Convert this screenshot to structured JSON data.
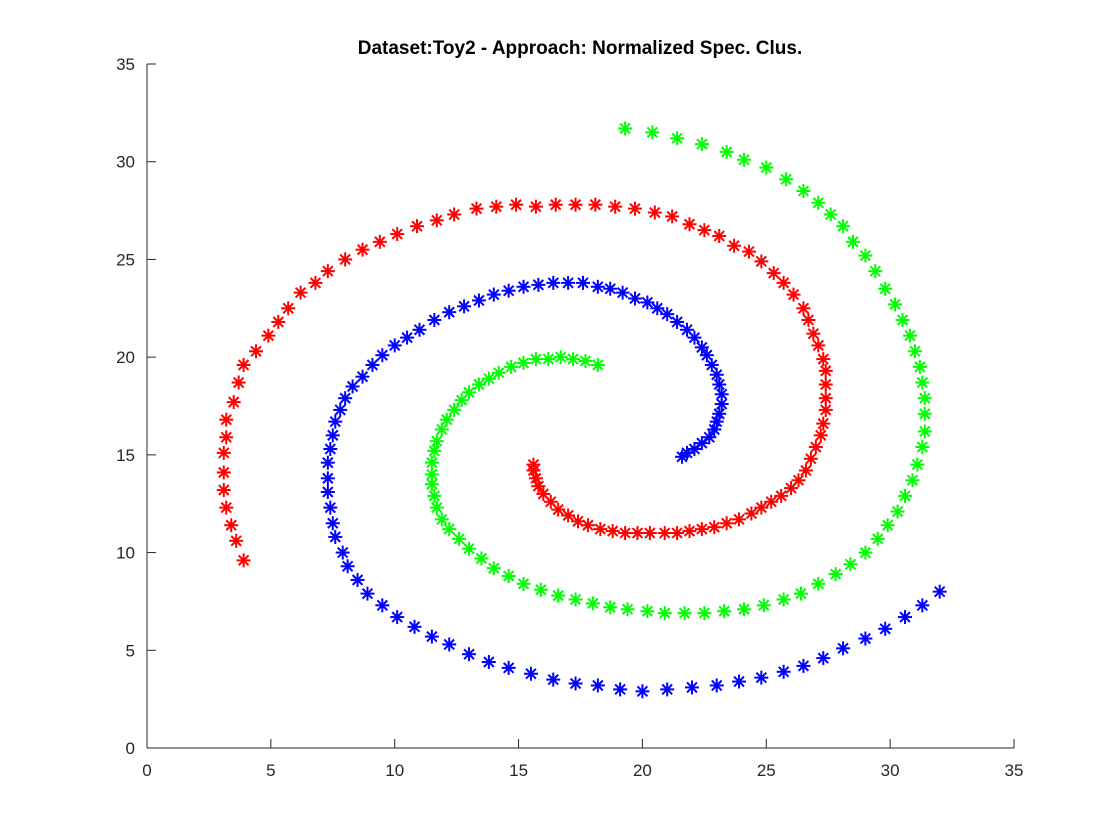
{
  "chart_data": {
    "type": "scatter",
    "title": "Dataset:Toy2 - Approach: Normalized Spec. Clus.",
    "xlabel": "",
    "ylabel": "",
    "xlim": [
      0,
      35
    ],
    "ylim": [
      0,
      35
    ],
    "xticks": [
      0,
      5,
      10,
      15,
      20,
      25,
      30,
      35
    ],
    "yticks": [
      0,
      5,
      10,
      15,
      20,
      25,
      30,
      35
    ],
    "grid": false,
    "marker": "asterisk",
    "series": [
      {
        "color": "#ff0000",
        "points": [
          [
            3.9,
            9.6
          ],
          [
            3.6,
            10.6
          ],
          [
            3.4,
            11.4
          ],
          [
            3.2,
            12.3
          ],
          [
            3.1,
            13.2
          ],
          [
            3.1,
            14.1
          ],
          [
            3.1,
            15.1
          ],
          [
            3.2,
            15.9
          ],
          [
            3.2,
            16.8
          ],
          [
            3.5,
            17.7
          ],
          [
            3.7,
            18.7
          ],
          [
            3.9,
            19.6
          ],
          [
            4.4,
            20.3
          ],
          [
            4.9,
            21.1
          ],
          [
            5.3,
            21.8
          ],
          [
            5.7,
            22.5
          ],
          [
            6.2,
            23.3
          ],
          [
            6.8,
            23.8
          ],
          [
            7.3,
            24.4
          ],
          [
            8.0,
            25.0
          ],
          [
            8.7,
            25.5
          ],
          [
            9.4,
            25.9
          ],
          [
            10.1,
            26.3
          ],
          [
            10.9,
            26.7
          ],
          [
            11.7,
            27.0
          ],
          [
            12.4,
            27.3
          ],
          [
            13.3,
            27.6
          ],
          [
            14.1,
            27.7
          ],
          [
            14.9,
            27.8
          ],
          [
            15.7,
            27.7
          ],
          [
            16.5,
            27.8
          ],
          [
            17.3,
            27.8
          ],
          [
            18.1,
            27.8
          ],
          [
            18.9,
            27.7
          ],
          [
            19.7,
            27.6
          ],
          [
            20.5,
            27.4
          ],
          [
            21.2,
            27.2
          ],
          [
            21.9,
            26.8
          ],
          [
            22.5,
            26.5
          ],
          [
            23.1,
            26.2
          ],
          [
            23.7,
            25.7
          ],
          [
            24.3,
            25.4
          ],
          [
            24.8,
            24.9
          ],
          [
            25.3,
            24.3
          ],
          [
            25.7,
            23.8
          ],
          [
            26.1,
            23.2
          ],
          [
            26.5,
            22.5
          ],
          [
            26.7,
            21.9
          ],
          [
            26.9,
            21.2
          ],
          [
            27.1,
            20.6
          ],
          [
            27.3,
            19.9
          ],
          [
            27.4,
            19.3
          ],
          [
            27.4,
            18.6
          ],
          [
            27.4,
            17.9
          ],
          [
            27.4,
            17.3
          ],
          [
            27.3,
            16.6
          ],
          [
            27.2,
            16.0
          ],
          [
            27.0,
            15.4
          ],
          [
            26.8,
            14.8
          ],
          [
            26.6,
            14.2
          ],
          [
            26.3,
            13.7
          ],
          [
            26.0,
            13.3
          ],
          [
            25.6,
            12.9
          ],
          [
            25.2,
            12.6
          ],
          [
            24.8,
            12.3
          ],
          [
            24.4,
            12.0
          ],
          [
            23.9,
            11.7
          ],
          [
            23.4,
            11.5
          ],
          [
            22.9,
            11.3
          ],
          [
            22.4,
            11.2
          ],
          [
            21.9,
            11.1
          ],
          [
            21.4,
            11.0
          ],
          [
            20.9,
            11.0
          ],
          [
            20.3,
            11.0
          ],
          [
            19.8,
            11.0
          ],
          [
            19.3,
            11.0
          ],
          [
            18.8,
            11.1
          ],
          [
            18.3,
            11.2
          ],
          [
            17.8,
            11.4
          ],
          [
            17.4,
            11.6
          ],
          [
            17.0,
            11.9
          ],
          [
            16.6,
            12.2
          ],
          [
            16.3,
            12.6
          ],
          [
            16.0,
            13.0
          ],
          [
            15.8,
            13.4
          ],
          [
            15.7,
            13.8
          ],
          [
            15.6,
            14.2
          ],
          [
            15.6,
            14.5
          ]
        ]
      },
      {
        "color": "#0000ff",
        "points": [
          [
            32.0,
            8.0
          ],
          [
            31.3,
            7.3
          ],
          [
            30.6,
            6.7
          ],
          [
            29.8,
            6.1
          ],
          [
            29.0,
            5.6
          ],
          [
            28.1,
            5.1
          ],
          [
            27.3,
            4.6
          ],
          [
            26.5,
            4.2
          ],
          [
            25.7,
            3.9
          ],
          [
            24.8,
            3.6
          ],
          [
            23.9,
            3.4
          ],
          [
            23.0,
            3.2
          ],
          [
            22.0,
            3.1
          ],
          [
            21.0,
            3.0
          ],
          [
            20.0,
            2.9
          ],
          [
            19.1,
            3.0
          ],
          [
            18.2,
            3.2
          ],
          [
            17.3,
            3.3
          ],
          [
            16.4,
            3.5
          ],
          [
            15.5,
            3.8
          ],
          [
            14.6,
            4.1
          ],
          [
            13.8,
            4.4
          ],
          [
            13.0,
            4.8
          ],
          [
            12.2,
            5.3
          ],
          [
            11.5,
            5.7
          ],
          [
            10.8,
            6.2
          ],
          [
            10.1,
            6.7
          ],
          [
            9.5,
            7.3
          ],
          [
            8.9,
            7.9
          ],
          [
            8.5,
            8.6
          ],
          [
            8.1,
            9.3
          ],
          [
            7.9,
            10.0
          ],
          [
            7.6,
            10.8
          ],
          [
            7.5,
            11.5
          ],
          [
            7.4,
            12.3
          ],
          [
            7.3,
            13.1
          ],
          [
            7.3,
            13.8
          ],
          [
            7.3,
            14.6
          ],
          [
            7.4,
            15.3
          ],
          [
            7.5,
            16.0
          ],
          [
            7.6,
            16.7
          ],
          [
            7.8,
            17.3
          ],
          [
            8.0,
            17.9
          ],
          [
            8.3,
            18.5
          ],
          [
            8.7,
            19.0
          ],
          [
            9.1,
            19.6
          ],
          [
            9.5,
            20.1
          ],
          [
            10.0,
            20.6
          ],
          [
            10.5,
            21.0
          ],
          [
            11.0,
            21.4
          ],
          [
            11.6,
            21.9
          ],
          [
            12.2,
            22.3
          ],
          [
            12.8,
            22.6
          ],
          [
            13.4,
            22.9
          ],
          [
            14.0,
            23.2
          ],
          [
            14.6,
            23.4
          ],
          [
            15.2,
            23.6
          ],
          [
            15.8,
            23.7
          ],
          [
            16.4,
            23.8
          ],
          [
            17.0,
            23.8
          ],
          [
            17.6,
            23.8
          ],
          [
            18.2,
            23.6
          ],
          [
            18.7,
            23.5
          ],
          [
            19.2,
            23.3
          ],
          [
            19.7,
            23.0
          ],
          [
            20.2,
            22.8
          ],
          [
            20.6,
            22.5
          ],
          [
            21.0,
            22.2
          ],
          [
            21.4,
            21.8
          ],
          [
            21.8,
            21.4
          ],
          [
            22.1,
            21.0
          ],
          [
            22.4,
            20.5
          ],
          [
            22.6,
            20.1
          ],
          [
            22.8,
            19.6
          ],
          [
            23.0,
            19.1
          ],
          [
            23.1,
            18.6
          ],
          [
            23.2,
            18.1
          ],
          [
            23.2,
            17.6
          ],
          [
            23.1,
            17.1
          ],
          [
            23.0,
            16.7
          ],
          [
            22.9,
            16.3
          ],
          [
            22.7,
            15.9
          ],
          [
            22.4,
            15.6
          ],
          [
            22.1,
            15.3
          ],
          [
            21.8,
            15.1
          ],
          [
            21.6,
            14.9
          ]
        ]
      },
      {
        "color": "#00ff00",
        "points": [
          [
            19.3,
            31.7
          ],
          [
            20.4,
            31.5
          ],
          [
            21.4,
            31.2
          ],
          [
            22.4,
            30.9
          ],
          [
            23.4,
            30.5
          ],
          [
            24.1,
            30.1
          ],
          [
            25.0,
            29.7
          ],
          [
            25.8,
            29.1
          ],
          [
            26.5,
            28.5
          ],
          [
            27.1,
            27.9
          ],
          [
            27.6,
            27.3
          ],
          [
            28.1,
            26.7
          ],
          [
            28.5,
            25.9
          ],
          [
            29.0,
            25.2
          ],
          [
            29.4,
            24.4
          ],
          [
            29.8,
            23.5
          ],
          [
            30.2,
            22.7
          ],
          [
            30.5,
            21.9
          ],
          [
            30.8,
            21.1
          ],
          [
            31.0,
            20.3
          ],
          [
            31.2,
            19.5
          ],
          [
            31.3,
            18.7
          ],
          [
            31.4,
            17.9
          ],
          [
            31.4,
            17.1
          ],
          [
            31.4,
            16.2
          ],
          [
            31.3,
            15.4
          ],
          [
            31.1,
            14.5
          ],
          [
            30.9,
            13.7
          ],
          [
            30.6,
            12.9
          ],
          [
            30.3,
            12.1
          ],
          [
            29.9,
            11.4
          ],
          [
            29.5,
            10.7
          ],
          [
            29.0,
            10.0
          ],
          [
            28.4,
            9.4
          ],
          [
            27.8,
            8.9
          ],
          [
            27.1,
            8.4
          ],
          [
            26.4,
            7.9
          ],
          [
            25.7,
            7.6
          ],
          [
            24.9,
            7.3
          ],
          [
            24.1,
            7.1
          ],
          [
            23.3,
            7.0
          ],
          [
            22.5,
            6.9
          ],
          [
            21.7,
            6.9
          ],
          [
            20.9,
            6.9
          ],
          [
            20.2,
            7.0
          ],
          [
            19.4,
            7.1
          ],
          [
            18.7,
            7.2
          ],
          [
            18.0,
            7.4
          ],
          [
            17.3,
            7.6
          ],
          [
            16.6,
            7.8
          ],
          [
            15.9,
            8.1
          ],
          [
            15.2,
            8.4
          ],
          [
            14.6,
            8.8
          ],
          [
            14.0,
            9.2
          ],
          [
            13.5,
            9.7
          ],
          [
            13.0,
            10.2
          ],
          [
            12.6,
            10.7
          ],
          [
            12.2,
            11.2
          ],
          [
            11.9,
            11.7
          ],
          [
            11.7,
            12.3
          ],
          [
            11.6,
            12.9
          ],
          [
            11.5,
            13.5
          ],
          [
            11.5,
            14.0
          ],
          [
            11.5,
            14.6
          ],
          [
            11.6,
            15.2
          ],
          [
            11.7,
            15.7
          ],
          [
            11.9,
            16.3
          ],
          [
            12.1,
            16.8
          ],
          [
            12.4,
            17.3
          ],
          [
            12.7,
            17.8
          ],
          [
            13.0,
            18.2
          ],
          [
            13.4,
            18.6
          ],
          [
            13.8,
            18.9
          ],
          [
            14.2,
            19.2
          ],
          [
            14.7,
            19.5
          ],
          [
            15.2,
            19.7
          ],
          [
            15.7,
            19.9
          ],
          [
            16.2,
            19.9
          ],
          [
            16.7,
            20.0
          ],
          [
            17.2,
            19.9
          ],
          [
            17.7,
            19.8
          ],
          [
            18.2,
            19.6
          ]
        ]
      }
    ]
  }
}
